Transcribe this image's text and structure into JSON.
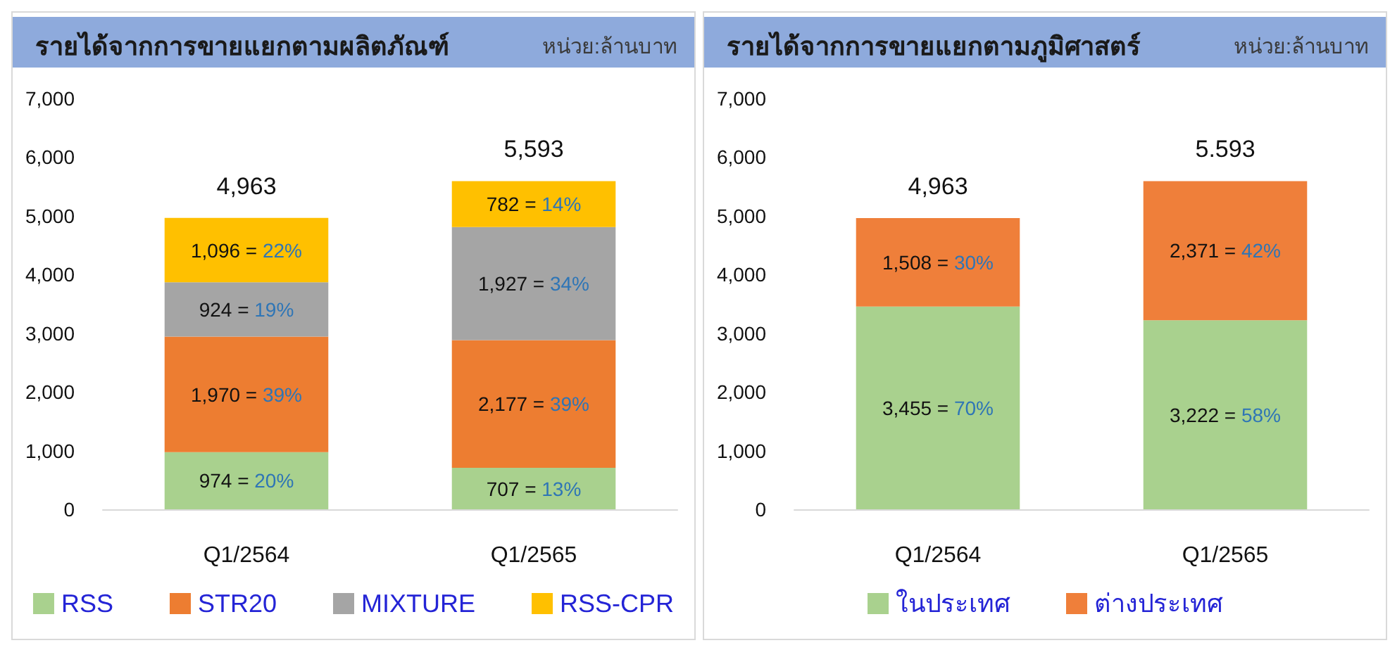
{
  "chart_data": [
    {
      "type": "bar",
      "title": "รายได้จากการขายแยกตามผลิตภัณฑ์",
      "subtitle": "หน่วย:ล้านบาท",
      "categories": [
        "Q1/2564",
        "Q1/2565"
      ],
      "stacked": true,
      "series": [
        {
          "name": "RSS",
          "color": "#a9d18e",
          "values": [
            974,
            707
          ],
          "value_labels": [
            "974 = 20%",
            "707 = 13%"
          ]
        },
        {
          "name": "STR20",
          "color": "#ed7d31",
          "values": [
            1970,
            2177
          ],
          "value_labels": [
            "1,970 = 39%",
            "2,177 = 39%"
          ]
        },
        {
          "name": "MIXTURE",
          "color": "#a5a5a5",
          "values": [
            924,
            1927
          ],
          "value_labels": [
            "924 = 19%",
            "1,927 = 34%"
          ]
        },
        {
          "name": "RSS-CPR",
          "color": "#ffc000",
          "values": [
            1096,
            782
          ],
          "value_labels": [
            "1,096 = 22%",
            "782 = 14%"
          ]
        }
      ],
      "totals": [
        "4,963",
        "5,593"
      ],
      "ylim": [
        0,
        7000
      ],
      "yticks": [
        0,
        {
          "value": 1000,
          "label": "1,000"
        },
        {
          "value": 2000,
          "label": "2,000"
        },
        {
          "value": 3000,
          "label": "3,000"
        },
        {
          "value": 4000,
          "label": "4,000"
        },
        {
          "value": 5000,
          "label": "5,000"
        },
        {
          "value": 6000,
          "label": "6,000"
        },
        {
          "value": 7000,
          "label": "7,000"
        }
      ],
      "legend": "bottom"
    },
    {
      "type": "bar",
      "title": "รายได้จากการขายแยกตามภูมิศาสตร์",
      "subtitle": "หน่วย:ล้านบาท",
      "categories": [
        "Q1/2564",
        "Q1/2565"
      ],
      "stacked": true,
      "series": [
        {
          "name": "ในประเทศ",
          "color": "#a9d18e",
          "values": [
            3455,
            3222
          ],
          "value_labels": [
            "3,455 = 70%",
            "3,222 = 58%"
          ]
        },
        {
          "name": "ต่างประเทศ",
          "color": "#ef7f3a",
          "values": [
            1508,
            2371
          ],
          "value_labels": [
            "1,508 = 30%",
            "2,371 = 42%"
          ]
        }
      ],
      "totals": [
        "4,963",
        null
      ],
      "annotations": [
        {
          "text": "5.593",
          "x": "Q1/2565",
          "y": 5593
        }
      ],
      "ylim": [
        0,
        7000
      ],
      "yticks": [
        0,
        {
          "value": 1000,
          "label": "1,000"
        },
        {
          "value": 2000,
          "label": "2,000"
        },
        {
          "value": 3000,
          "label": "3,000"
        },
        {
          "value": 4000,
          "label": "4,000"
        },
        {
          "value": 5000,
          "label": "5,000"
        },
        {
          "value": 6000,
          "label": "6,000"
        },
        {
          "value": 7000,
          "label": "7,000"
        }
      ],
      "legend": "bottom"
    }
  ]
}
